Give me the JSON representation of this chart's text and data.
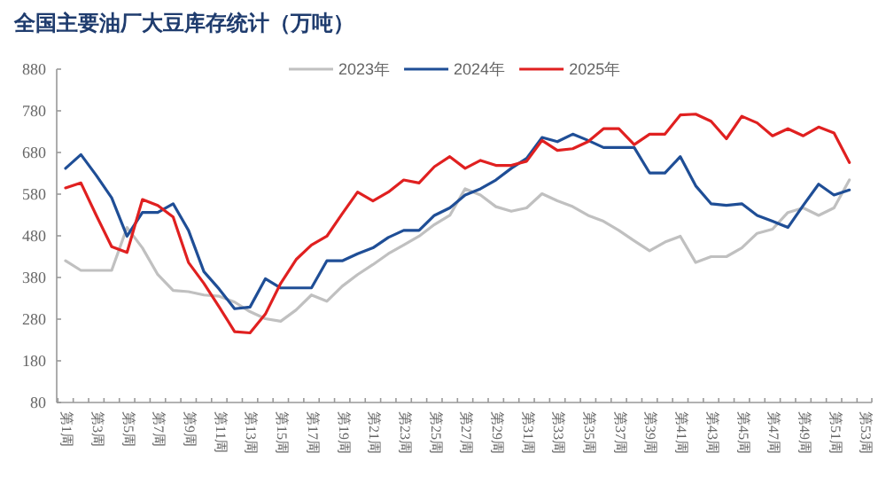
{
  "chart_data": {
    "type": "line",
    "title": "全国主要油厂大豆库存统计（万吨）",
    "categories": [
      "第1周",
      null,
      "第3周",
      null,
      "第5周",
      null,
      "第7周",
      null,
      "第9周",
      null,
      "第11周",
      null,
      "第13周",
      null,
      "第15周",
      null,
      "第17周",
      null,
      "第19周",
      null,
      "第21周",
      null,
      "第23周",
      null,
      "第25周",
      null,
      "第27周",
      null,
      "第29周",
      null,
      "第31周",
      null,
      "第33周",
      null,
      "第35周",
      null,
      "第37周",
      null,
      "第39周",
      null,
      "第41周",
      null,
      "第43周",
      null,
      "第45周",
      null,
      "第47周",
      null,
      "第49周",
      null,
      "第51周",
      null,
      "第53周"
    ],
    "series": [
      {
        "name": "2023年",
        "color": "#c0c0c0",
        "values": [
          420,
          397,
          397,
          397,
          500,
          451,
          387,
          349,
          346,
          338,
          335,
          321,
          298,
          281,
          275,
          302,
          338,
          323,
          359,
          387,
          411,
          437,
          458,
          479,
          507,
          529,
          593,
          578,
          550,
          539,
          547,
          581,
          564,
          550,
          529,
          515,
          493,
          468,
          444,
          465,
          479,
          416,
          430,
          430,
          451,
          486,
          496,
          536,
          547,
          529,
          547,
          614,
          null
        ]
      },
      {
        "name": "2024年",
        "color": "#1f4e96",
        "values": [
          642,
          675,
          625,
          571,
          479,
          536,
          536,
          557,
          493,
          394,
          352,
          305,
          309,
          377,
          355,
          355,
          355,
          420,
          420,
          437,
          451,
          476,
          493,
          493,
          529,
          547,
          578,
          593,
          614,
          642,
          666,
          716,
          706,
          724,
          709,
          692,
          692,
          692,
          631,
          631,
          670,
          600,
          557,
          553,
          557,
          529,
          515,
          500,
          553,
          604,
          578,
          590,
          null
        ]
      },
      {
        "name": "2025年",
        "color": "#e02020",
        "values": [
          595,
          607,
          529,
          454,
          440,
          567,
          553,
          525,
          416,
          366,
          309,
          250,
          247,
          292,
          366,
          423,
          458,
          479,
          533,
          585,
          564,
          585,
          614,
          607,
          646,
          670,
          642,
          661,
          649,
          649,
          659,
          709,
          685,
          689,
          706,
          737,
          737,
          699,
          724,
          724,
          770,
          772,
          755,
          713,
          767,
          751,
          720,
          737,
          720,
          741,
          727,
          656,
          null
        ]
      }
    ],
    "ylim": [
      80,
      880
    ],
    "yticks": [
      80,
      180,
      280,
      380,
      480,
      580,
      680,
      780,
      880
    ],
    "legend": "top",
    "marker": "none",
    "line_style": "solid"
  }
}
